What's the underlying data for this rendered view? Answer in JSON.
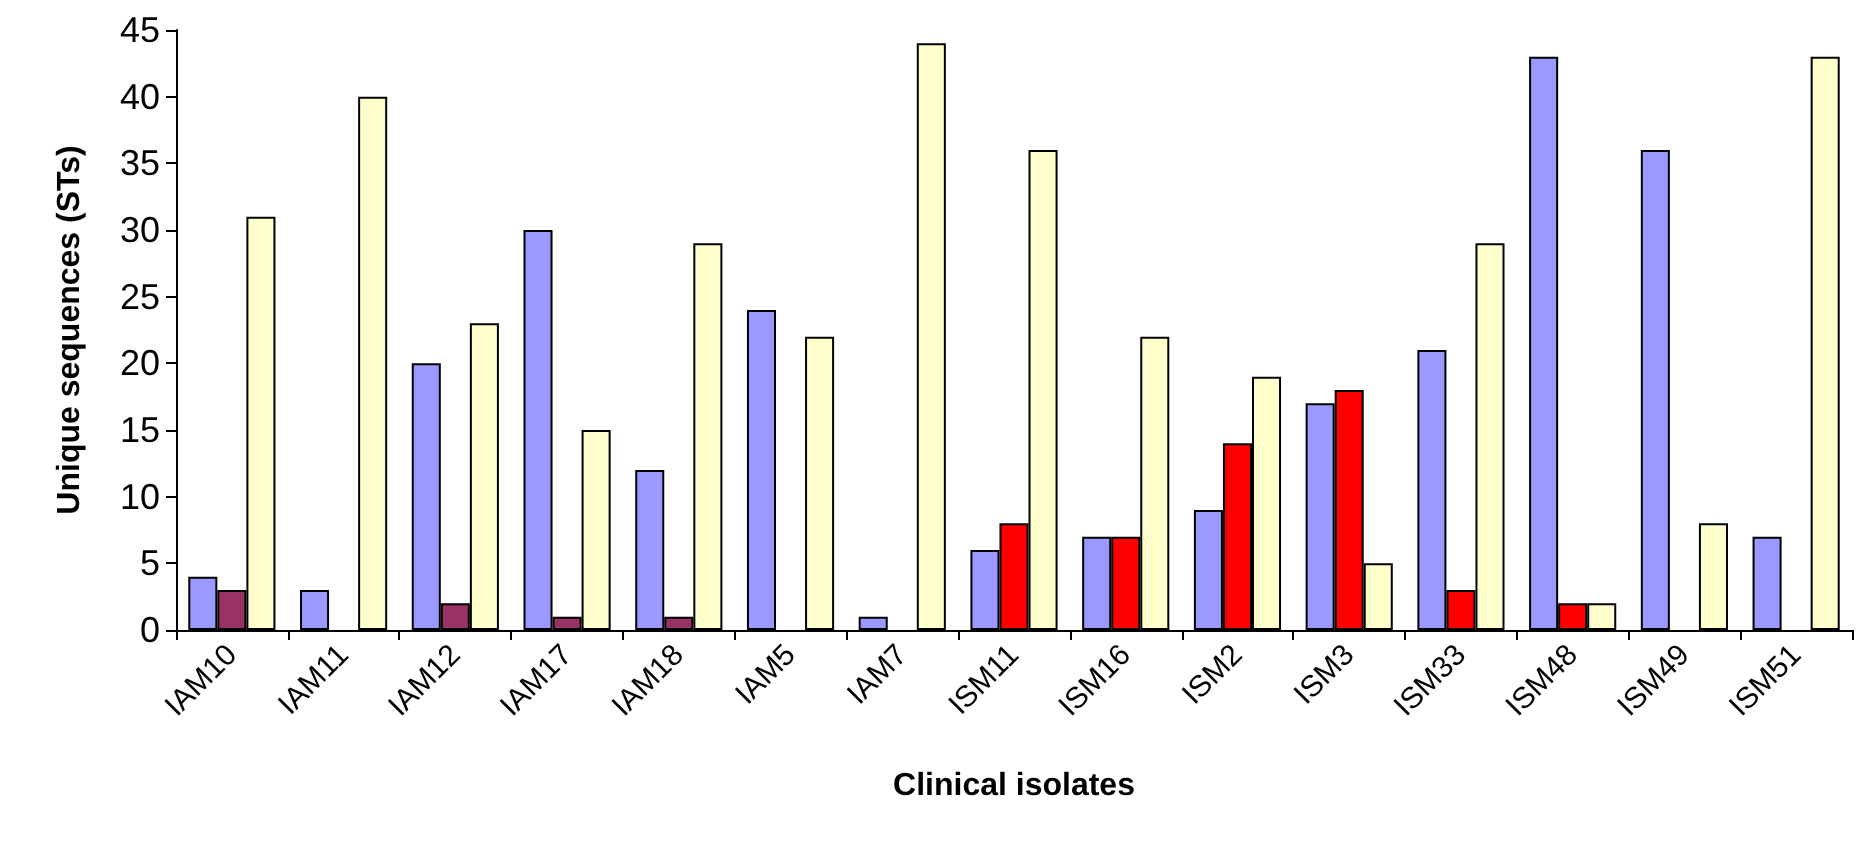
{
  "chart_data": {
    "type": "bar",
    "xlabel": "Clinical isolates",
    "ylabel": "Unique sequences (STs)",
    "categories": [
      "IAM10",
      "IAM11",
      "IAM12",
      "IAM17",
      "IAM18",
      "IAM5",
      "IAM7",
      "ISM11",
      "ISM16",
      "ISM2",
      "ISM3",
      "ISM33",
      "ISM48",
      "ISM49",
      "ISM51"
    ],
    "series": [
      {
        "color": "#9999ff",
        "values": [
          4,
          3,
          20,
          30,
          12,
          24,
          1,
          6,
          7,
          9,
          17,
          21,
          43,
          36,
          7
        ]
      },
      {
        "colors": [
          "#993366",
          "#993366",
          "#993366",
          "#993366",
          "#993366",
          "#993366",
          "#993366",
          "#ff0000",
          "#ff0000",
          "#ff0000",
          "#ff0000",
          "#ff0000",
          "#ff0000",
          "#ff0000",
          "#ff0000"
        ],
        "values": [
          3,
          0,
          2,
          1,
          1,
          0,
          0,
          8,
          7,
          14,
          18,
          3,
          2,
          0,
          0
        ]
      },
      {
        "color": "#ffffcc",
        "values": [
          31,
          40,
          23,
          15,
          29,
          22,
          44,
          36,
          22,
          19,
          5,
          29,
          2,
          8,
          43
        ]
      }
    ],
    "ylim": [
      0,
      45
    ],
    "yticks": [
      0,
      5,
      10,
      15,
      20,
      25,
      30,
      35,
      40,
      45
    ]
  }
}
